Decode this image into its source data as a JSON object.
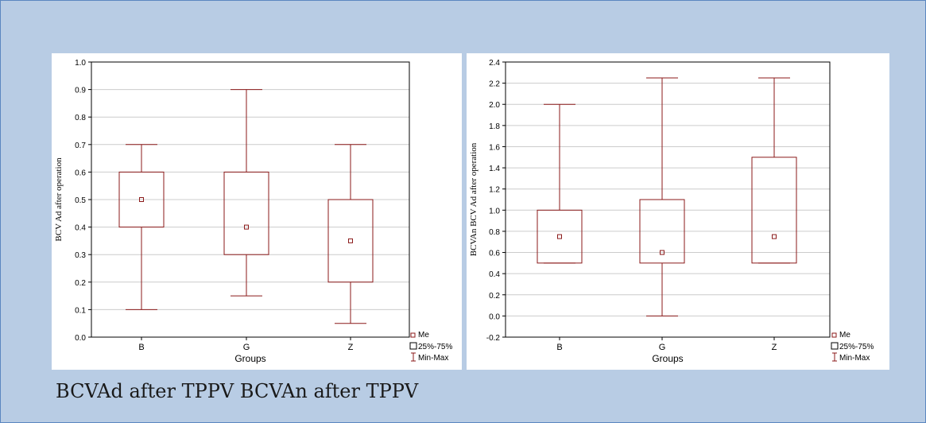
{
  "caption": "BCVAd after TPPV BCVAn after TPPV",
  "colors": {
    "plot_stroke": "#8b1a1a",
    "grid": "#cccccc",
    "background": "#b8cce4"
  },
  "chart_data": [
    {
      "type": "box",
      "ylabel": "BCV Ad after operation",
      "xlabel": "Groups",
      "categories": [
        "B",
        "G",
        "Z"
      ],
      "ylim": [
        0.0,
        1.0
      ],
      "yticks": [
        0.0,
        0.1,
        0.2,
        0.3,
        0.4,
        0.5,
        0.6,
        0.7,
        0.8,
        0.9,
        1.0
      ],
      "ytick_labels": [
        "0.0",
        "0.1",
        "0.2",
        "0.3",
        "0.4",
        "0.5",
        "0.6",
        "0.7",
        "0.8",
        "0.9",
        "1.0"
      ],
      "series": [
        {
          "category": "B",
          "min": 0.1,
          "q1": 0.4,
          "median": 0.5,
          "q3": 0.6,
          "max": 0.7
        },
        {
          "category": "G",
          "min": 0.15,
          "q1": 0.3,
          "median": 0.4,
          "q3": 0.6,
          "max": 0.9
        },
        {
          "category": "Z",
          "min": 0.05,
          "q1": 0.2,
          "median": 0.35,
          "q3": 0.5,
          "max": 0.7
        }
      ],
      "legend": {
        "position": "bottom-right",
        "items": [
          "Me",
          "25%-75%",
          "Min-Max"
        ]
      },
      "grid": true
    },
    {
      "type": "box",
      "ylabel": "BCVAn BCV Ad after operation",
      "xlabel": "Groups",
      "categories": [
        "B",
        "G",
        "Z"
      ],
      "ylim": [
        -0.2,
        2.4
      ],
      "yticks": [
        -0.2,
        0.0,
        0.2,
        0.4,
        0.6,
        0.8,
        1.0,
        1.2,
        1.4,
        1.6,
        1.8,
        2.0,
        2.2,
        2.4
      ],
      "ytick_labels": [
        "-0.2",
        "0.0",
        "0.2",
        "0.4",
        "0.6",
        "0.8",
        "1.0",
        "1.2",
        "1.4",
        "1.6",
        "1.8",
        "2.0",
        "2.2",
        "2.4"
      ],
      "series": [
        {
          "category": "B",
          "min": 0.5,
          "q1": 0.5,
          "median": 0.75,
          "q3": 1.0,
          "max": 2.0
        },
        {
          "category": "G",
          "min": 0.0,
          "q1": 0.5,
          "median": 0.6,
          "q3": 1.1,
          "max": 2.25
        },
        {
          "category": "Z",
          "min": 0.5,
          "q1": 0.5,
          "median": 0.75,
          "q3": 1.5,
          "max": 2.25
        }
      ],
      "legend": {
        "position": "bottom-right",
        "items": [
          "Me",
          "25%-75%",
          "Min-Max"
        ]
      },
      "grid": true
    }
  ]
}
